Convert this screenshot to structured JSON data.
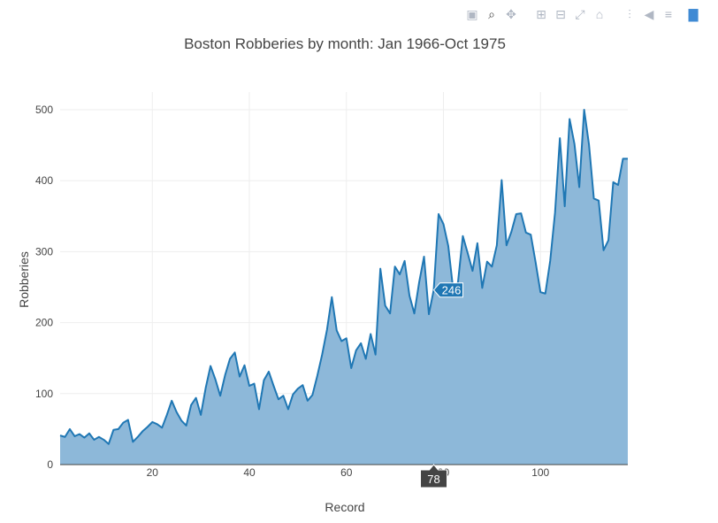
{
  "toolbar": {
    "buttons": [
      {
        "name": "camera-icon",
        "glyph": "▣"
      },
      {
        "name": "zoom-icon",
        "glyph": "⌕",
        "active": true
      },
      {
        "name": "pan-icon",
        "glyph": "✥"
      },
      {
        "name": "zoom-in-icon",
        "glyph": "⊞"
      },
      {
        "name": "zoom-out-icon",
        "glyph": "⊟"
      },
      {
        "name": "autoscale-icon",
        "glyph": "⤢"
      },
      {
        "name": "home-icon",
        "glyph": "⌂"
      },
      {
        "name": "spike-lines-icon",
        "glyph": "⫶"
      },
      {
        "name": "hover-closest-icon",
        "glyph": "◀"
      },
      {
        "name": "hover-compare-icon",
        "glyph": "≡"
      },
      {
        "name": "plotly-logo-icon",
        "glyph": "▇"
      }
    ]
  },
  "chart_data": {
    "type": "area",
    "title": "Boston Robberies by month: Jan 1966-Oct 1975",
    "xlabel": "Record",
    "ylabel": "Robberies",
    "xlim": [
      1,
      118
    ],
    "ylim": [
      0,
      525
    ],
    "xticks": [
      20,
      40,
      60,
      80,
      100
    ],
    "yticks": [
      0,
      100,
      200,
      300,
      400,
      500
    ],
    "grid": true,
    "line_color": "#1f77b4",
    "fill_color": "#8db8d9",
    "x": [
      1,
      2,
      3,
      4,
      5,
      6,
      7,
      8,
      9,
      10,
      11,
      12,
      13,
      14,
      15,
      16,
      17,
      18,
      19,
      20,
      21,
      22,
      23,
      24,
      25,
      26,
      27,
      28,
      29,
      30,
      31,
      32,
      33,
      34,
      35,
      36,
      37,
      38,
      39,
      40,
      41,
      42,
      43,
      44,
      45,
      46,
      47,
      48,
      49,
      50,
      51,
      52,
      53,
      54,
      55,
      56,
      57,
      58,
      59,
      60,
      61,
      62,
      63,
      64,
      65,
      66,
      67,
      68,
      69,
      70,
      71,
      72,
      73,
      74,
      75,
      76,
      77,
      78,
      79,
      80,
      81,
      82,
      83,
      84,
      85,
      86,
      87,
      88,
      89,
      90,
      91,
      92,
      93,
      94,
      95,
      96,
      97,
      98,
      99,
      100,
      101,
      102,
      103,
      104,
      105,
      106,
      107,
      108,
      109,
      110,
      111,
      112,
      113,
      114,
      115,
      116,
      117,
      118
    ],
    "y": [
      41,
      39,
      50,
      40,
      43,
      38,
      44,
      35,
      39,
      35,
      29,
      49,
      50,
      59,
      63,
      32,
      39,
      47,
      53,
      60,
      57,
      52,
      70,
      90,
      74,
      62,
      55,
      84,
      94,
      70,
      108,
      139,
      120,
      97,
      126,
      149,
      158,
      124,
      140,
      111,
      114,
      78,
      119,
      131,
      111,
      92,
      97,
      78,
      99,
      107,
      112,
      90,
      98,
      125,
      155,
      190,
      236,
      189,
      174,
      178,
      136,
      161,
      171,
      149,
      184,
      155,
      276,
      224,
      213,
      279,
      268,
      287,
      238,
      213,
      257,
      293,
      212,
      246,
      353,
      339,
      308,
      247,
      257,
      322,
      298,
      273,
      312,
      249,
      286,
      279,
      309,
      401,
      309,
      328,
      353,
      354,
      327,
      324,
      285,
      243,
      241,
      287,
      355,
      460,
      364,
      487,
      452,
      391,
      500,
      451,
      375,
      372,
      302,
      316,
      398,
      394,
      431,
      431
    ],
    "hover": {
      "x_label": "78",
      "y_label": "246"
    }
  }
}
